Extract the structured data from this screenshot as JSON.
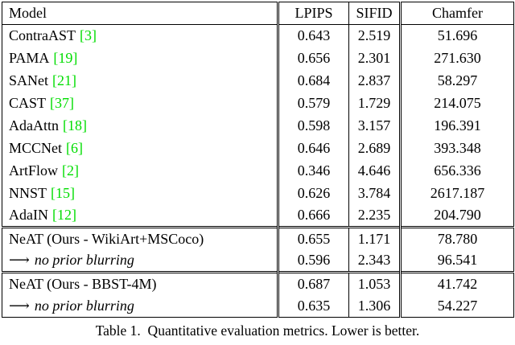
{
  "colors": {
    "citation": "#00dd00",
    "text": "#000000",
    "background": "#ffffff"
  },
  "table": {
    "headers": [
      "Model",
      "LPIPS",
      "SIFID",
      "Chamfer"
    ],
    "rows": [
      {
        "model": "ContraAST",
        "cite": "[3]",
        "lpips": "0.643",
        "sifid": "2.519",
        "chamfer": "51.696"
      },
      {
        "model": "PAMA",
        "cite": "[19]",
        "lpips": "0.656",
        "sifid": "2.301",
        "chamfer": "271.630"
      },
      {
        "model": "SANet",
        "cite": "[21]",
        "lpips": "0.684",
        "sifid": "2.837",
        "chamfer": "58.297"
      },
      {
        "model": "CAST",
        "cite": "[37]",
        "lpips": "0.579",
        "sifid": "1.729",
        "chamfer": "214.075"
      },
      {
        "model": "AdaAttn",
        "cite": "[18]",
        "lpips": "0.598",
        "sifid": "3.157",
        "chamfer": "196.391"
      },
      {
        "model": "MCCNet",
        "cite": "[6]",
        "lpips": "0.646",
        "sifid": "2.689",
        "chamfer": "393.348"
      },
      {
        "model": "ArtFlow",
        "cite": "[2]",
        "lpips": "0.346",
        "sifid": "4.646",
        "chamfer": "656.336"
      },
      {
        "model": "NNST",
        "cite": "[15]",
        "lpips": "0.626",
        "sifid": "3.784",
        "chamfer": "2617.187"
      },
      {
        "model": "AdaIN",
        "cite": "[12]",
        "lpips": "0.666",
        "sifid": "2.235",
        "chamfer": "204.790"
      },
      {
        "model": "NeAT (Ours - WikiArt+MSCoco)",
        "lpips": "0.655",
        "sifid": "1.171",
        "chamfer": "78.780"
      },
      {
        "arrow": "⟶",
        "model": "no prior blurring",
        "lpips": "0.596",
        "sifid": "2.343",
        "chamfer": "96.541"
      },
      {
        "model": "NeAT (Ours - BBST-4M)",
        "lpips": "0.687",
        "sifid": "1.053",
        "chamfer": "41.742"
      },
      {
        "arrow": "⟶",
        "model": "no prior blurring",
        "lpips": "0.635",
        "sifid": "1.306",
        "chamfer": "54.227"
      }
    ],
    "caption": "Table 1.  Quantitative evaluation metrics. Lower is better."
  }
}
